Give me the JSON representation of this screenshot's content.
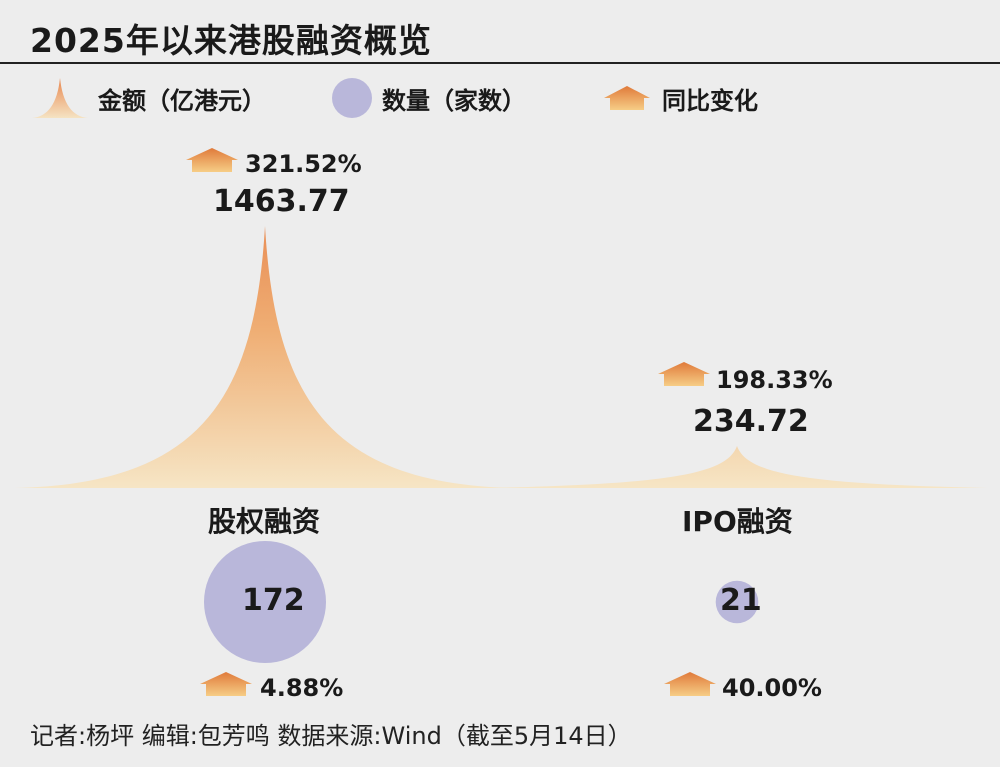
{
  "title": "2025年以来港股融资概览",
  "legend": {
    "amount": "金额（亿港元）",
    "count": "数量（家数）",
    "change": "同比变化"
  },
  "colors": {
    "amount_top": "#e8874f",
    "amount_bottom": "#f5e3c3",
    "count": "#b9b7da",
    "arrow_top": "#e07a3a",
    "arrow_bottom": "#f6cd86"
  },
  "chart_data": {
    "type": "area",
    "categories": [
      "股权融资",
      "IPO融资"
    ],
    "amount": [
      1463.77,
      234.72
    ],
    "amount_labels": [
      "1463.77",
      "234.72"
    ],
    "amount_change": [
      "321.52%",
      "198.33%"
    ],
    "count": [
      172,
      21
    ],
    "count_labels": [
      "172",
      "21"
    ],
    "count_change": [
      "4.88%",
      "40.00%"
    ]
  },
  "credit": "记者:杨坪   编辑:包芳鸣   数据来源:Wind（截至5月14日）"
}
